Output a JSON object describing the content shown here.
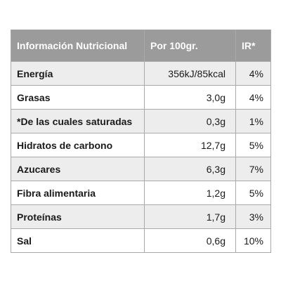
{
  "table": {
    "headers": [
      "Información Nutricional",
      "Por 100gr.",
      "IR*"
    ],
    "rows": [
      {
        "name": "Energía",
        "value": "356kJ/85kcal",
        "ir": "4%"
      },
      {
        "name": "Grasas",
        "value": "3,0g",
        "ir": "4%"
      },
      {
        "name": "*De las cuales saturadas",
        "value": "0,3g",
        "ir": "1%"
      },
      {
        "name": "Hidratos de carbono",
        "value": "12,7g",
        "ir": "5%"
      },
      {
        "name": "Azucares",
        "value": "6,3g",
        "ir": "7%"
      },
      {
        "name": "Fibra alimentaria",
        "value": "1,2g",
        "ir": "5%"
      },
      {
        "name": "Proteínas",
        "value": "1,7g",
        "ir": "3%"
      },
      {
        "name": "Sal",
        "value": "0,6g",
        "ir": "10%"
      }
    ]
  },
  "colors": {
    "header_bg": "#9b9b9b",
    "header_text": "#ffffff",
    "row_alt_bg": "#ededed",
    "border": "#a9a9a9"
  }
}
